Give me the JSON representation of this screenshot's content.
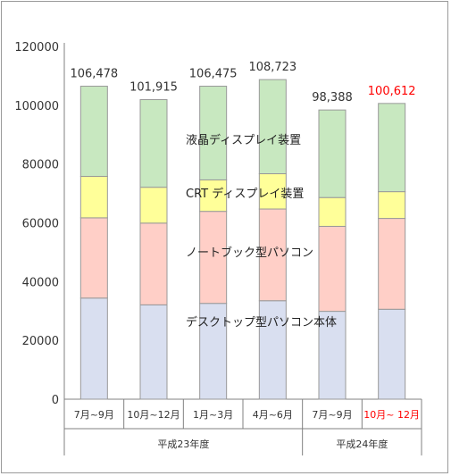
{
  "chart_data": {
    "type": "bar",
    "stacked": true,
    "categories": [
      "7月~9月",
      "10月~12月",
      "1月~3月",
      "4月~6月",
      "7月~9月",
      "10月~ 12月"
    ],
    "groups": [
      {
        "label": "平成23年度",
        "categories": [
          "7月~9月",
          "10月~12月",
          "1月~3月",
          "4月~6月"
        ]
      },
      {
        "label": "平成24年度",
        "categories": [
          "7月~9月",
          "10月~ 12月"
        ]
      }
    ],
    "totals": [
      "106,478",
      "101,915",
      "106,475",
      "108,723",
      "98,388",
      "100,612"
    ],
    "series": [
      {
        "name": "デスクトップ型パソコン本体",
        "color": "#d9dff0",
        "values": [
          34400,
          32100,
          32600,
          33500,
          29900,
          30600
        ]
      },
      {
        "name": "ノートブック型パソコン",
        "color": "#ffcfc7",
        "values": [
          27300,
          27800,
          31300,
          31200,
          28900,
          30900
        ]
      },
      {
        "name": "CRT ディスプレイ装置",
        "color": "#ffff99",
        "values": [
          14100,
          12200,
          10700,
          12000,
          9800,
          9100
        ]
      },
      {
        "name": "液晶ディスプレイ装置",
        "color": "#c8e8c0",
        "values": [
          30678,
          29815,
          31875,
          32023,
          29788,
          30012
        ]
      }
    ],
    "ylim": [
      0,
      120000
    ],
    "yticks": [
      "0",
      "20000",
      "40000",
      "60000",
      "80000",
      "100000",
      "120000"
    ],
    "grid": false,
    "highlight_color": "#ff0000",
    "highlight_index": 5,
    "bar_outline_color": "#999999",
    "axis_color": "#808080"
  }
}
